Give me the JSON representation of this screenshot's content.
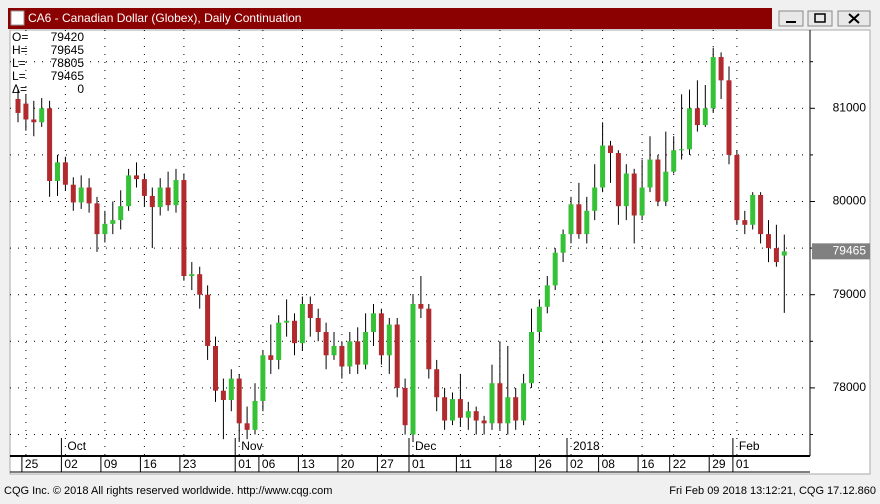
{
  "window": {
    "title": "CA6 - Canadian Dollar (Globex), Daily Continuation"
  },
  "chart_data": {
    "type": "candlestick",
    "open": [
      81100,
      81050,
      80880,
      80850,
      81000,
      80220,
      80420,
      80180,
      79990,
      80150,
      79980,
      79650,
      79760,
      79800,
      79950,
      80280,
      80240,
      80060,
      79940,
      80150,
      79960,
      80230,
      79200,
      79220,
      79000,
      78450,
      77970,
      77870,
      78100,
      77620,
      77550,
      77860,
      78350,
      78300,
      78700,
      78720,
      78480,
      78900,
      78750,
      78600,
      78350,
      78450,
      78230,
      78500,
      78250,
      78600,
      78800,
      78350,
      78680,
      78000,
      77500,
      78900,
      78850,
      78200,
      77900,
      77650,
      77880,
      77680,
      77750,
      77650,
      77620,
      78050,
      77620,
      77900,
      77650,
      78050,
      78600,
      78870,
      79100,
      79450,
      79650,
      79970,
      79650,
      79900,
      80150,
      80600,
      80520,
      79950,
      80300,
      79850,
      80150,
      80450,
      80000,
      80320,
      80550,
      80560,
      81000,
      80820,
      81000,
      81550,
      81300,
      80500,
      79800,
      79750,
      80070,
      79650,
      79500,
      79420
    ],
    "high": [
      81200,
      81150,
      81080,
      81110,
      81080,
      80500,
      80480,
      80260,
      80280,
      80250,
      80050,
      79900,
      80000,
      80120,
      80350,
      80420,
      80300,
      80150,
      80250,
      80320,
      80350,
      80300,
      79350,
      79300,
      79100,
      78550,
      78100,
      78200,
      78150,
      77800,
      78050,
      78400,
      78680,
      78780,
      78950,
      78800,
      78980,
      78980,
      78850,
      78700,
      78600,
      78500,
      78600,
      78650,
      78800,
      78900,
      78850,
      78750,
      78750,
      78100,
      79000,
      79200,
      78900,
      78300,
      78000,
      77950,
      78150,
      77850,
      77800,
      77700,
      78250,
      78500,
      78450,
      78000,
      78150,
      78850,
      78950,
      79200,
      79500,
      79700,
      80050,
      80200,
      80050,
      80400,
      80850,
      80650,
      80550,
      80400,
      80350,
      80450,
      80700,
      80500,
      80750,
      80700,
      81150,
      81200,
      81300,
      81250,
      81650,
      81600,
      81450,
      80550,
      79900,
      80100,
      80100,
      79800,
      79750,
      79645
    ],
    "low": [
      80850,
      80760,
      80700,
      80800,
      80050,
      80060,
      80120,
      79900,
      79920,
      79880,
      79460,
      79560,
      79650,
      79700,
      79900,
      80150,
      79950,
      79500,
      79850,
      79900,
      79880,
      79150,
      79050,
      78850,
      78300,
      77850,
      77450,
      77750,
      77420,
      77450,
      77500,
      77750,
      78150,
      78200,
      78550,
      78350,
      78400,
      78550,
      78500,
      78200,
      78300,
      78100,
      78150,
      78150,
      78200,
      78450,
      78250,
      78150,
      77900,
      77500,
      77420,
      78750,
      78100,
      77750,
      77550,
      77600,
      77580,
      77550,
      77500,
      77500,
      77550,
      77550,
      77500,
      77550,
      77600,
      78000,
      78500,
      78800,
      79050,
      79350,
      79550,
      79600,
      79550,
      79800,
      80100,
      80200,
      79750,
      79800,
      79550,
      79800,
      80100,
      79950,
      79950,
      80300,
      80450,
      80500,
      80750,
      80800,
      80950,
      81100,
      80400,
      79750,
      79650,
      79700,
      79550,
      79350,
      79300,
      78805
    ],
    "close": [
      80950,
      80880,
      80850,
      81000,
      80220,
      80420,
      80180,
      79990,
      80150,
      79980,
      79650,
      79760,
      79800,
      79950,
      80280,
      80240,
      80060,
      79940,
      80150,
      79960,
      80230,
      79200,
      79220,
      79000,
      78450,
      77970,
      77870,
      78100,
      77620,
      77550,
      77860,
      78350,
      78300,
      78700,
      78720,
      78480,
      78900,
      78750,
      78600,
      78350,
      78450,
      78230,
      78500,
      78250,
      78600,
      78800,
      78350,
      78680,
      78000,
      77600,
      78900,
      78850,
      78200,
      77900,
      77650,
      77880,
      77680,
      77750,
      77650,
      77620,
      78050,
      77620,
      77900,
      77650,
      78050,
      78600,
      78870,
      79100,
      79450,
      79650,
      79970,
      79650,
      79900,
      80150,
      80600,
      80520,
      79950,
      80300,
      79850,
      80150,
      80450,
      80000,
      80320,
      80550,
      80560,
      81000,
      80820,
      81000,
      81550,
      81300,
      80500,
      79800,
      79750,
      80070,
      79650,
      79500,
      79350,
      79465
    ],
    "up_color": "#36c236",
    "down_color": "#b02a2e",
    "ylim": [
      77280,
      81840
    ],
    "yticks": [
      78000,
      79000,
      80000,
      81000
    ],
    "minor_yticks": [
      77500,
      78500,
      79500,
      80500,
      81500
    ],
    "grid": true,
    "xticks": [
      {
        "value": 1,
        "label": "25"
      },
      {
        "value": 6,
        "label": "02"
      },
      {
        "value": 11,
        "label": "09"
      },
      {
        "value": 16,
        "label": "16"
      },
      {
        "value": 21,
        "label": "23"
      },
      {
        "value": 28,
        "label": "01"
      },
      {
        "value": 31,
        "label": "06"
      },
      {
        "value": 36,
        "label": "13"
      },
      {
        "value": 41,
        "label": "20"
      },
      {
        "value": 46,
        "label": "27"
      },
      {
        "value": 50,
        "label": "01"
      },
      {
        "value": 56,
        "label": "11"
      },
      {
        "value": 61,
        "label": "18"
      },
      {
        "value": 66,
        "label": "26"
      },
      {
        "value": 70,
        "label": "02"
      },
      {
        "value": 74,
        "label": "08"
      },
      {
        "value": 79,
        "label": "16"
      },
      {
        "value": 83,
        "label": "22"
      },
      {
        "value": 88,
        "label": "29"
      },
      {
        "value": 91,
        "label": "01"
      }
    ],
    "month_ticks": [
      {
        "value": 6,
        "label": "Oct"
      },
      {
        "value": 28,
        "label": "Nov"
      },
      {
        "value": 50,
        "label": "Dec"
      },
      {
        "value": 70,
        "label": "2018"
      },
      {
        "value": 91,
        "label": "Feb"
      }
    ],
    "readout": {
      "labels": [
        "O=",
        "H=",
        "L=",
        "L=",
        "Δ="
      ],
      "change": 0
    }
  },
  "footer": {
    "left": "CQG Inc. © 2018 All rights reserved worldwide. http://www.cqg.com",
    "right": "Fri Feb 09 2018 13:12:21, CQG 17.12.860"
  }
}
